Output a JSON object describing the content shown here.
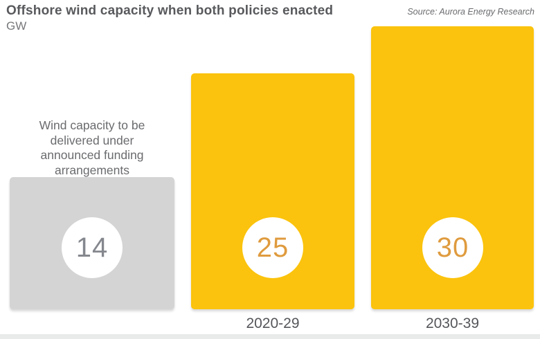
{
  "header": {
    "title": "Offshore wind capacity when both policies enacted",
    "unit": "GW",
    "source": "Source: Aurora Energy Research"
  },
  "annotation": "Wind capacity to be delivered under announced funding arrangements",
  "chart_data": {
    "type": "bar",
    "title": "Offshore wind capacity when both policies enacted",
    "ylabel": "GW",
    "source": "Source: Aurora Energy Research",
    "categories": [
      "",
      "2020-29",
      "2030-39"
    ],
    "values": [
      14,
      25,
      30
    ],
    "value_labels": [
      "14",
      "25",
      "30"
    ],
    "annotations": [
      "Wind capacity to be delivered under announced funding arrangements"
    ],
    "ylim": [
      0,
      30
    ],
    "grid": false,
    "legend": false,
    "bar_colors": [
      "#D4D4D5",
      "#FBC30D",
      "#FBC30D"
    ],
    "value_text_colors": [
      "#84878D",
      "#DF9B3E",
      "#DF9B3E"
    ]
  },
  "colors": {
    "bar_yellow": "#FBC30D",
    "bar_gray": "#D4D4D5",
    "title_text": "#58595C",
    "muted_text": "#6A6B6E",
    "axis_text": "#55565A",
    "bottom_strip": "#E9EAEA"
  }
}
